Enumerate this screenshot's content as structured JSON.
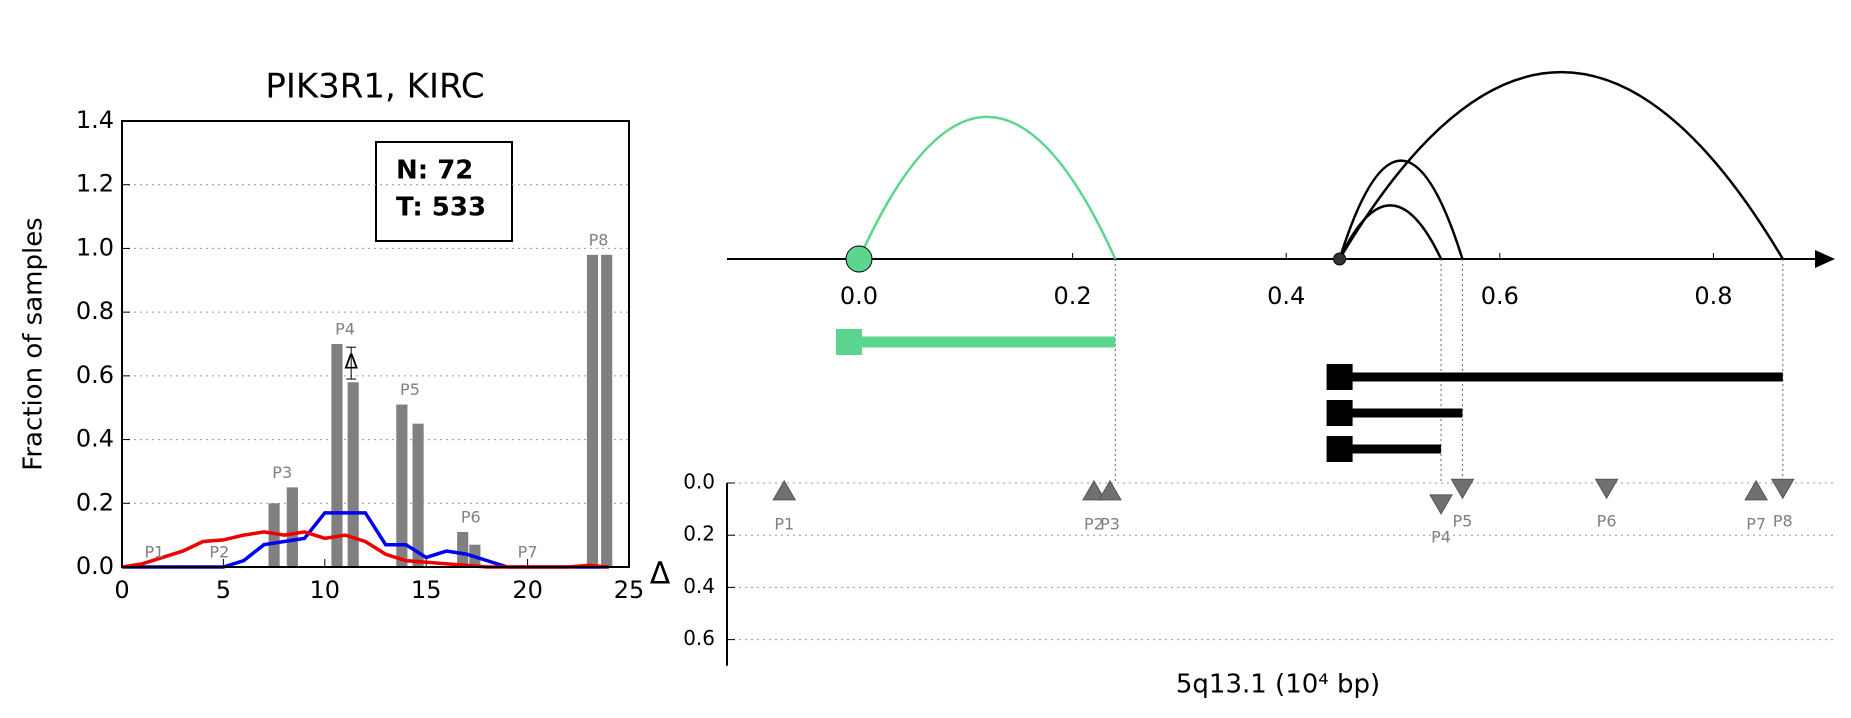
{
  "chart_data": [
    {
      "type": "bar",
      "title": "PIK3R1, KIRC",
      "ylabel": "Fraction of samples",
      "xlim": [
        0,
        25
      ],
      "xticks": [
        0,
        5,
        10,
        15,
        20,
        25
      ],
      "ylim": [
        0,
        1.4
      ],
      "yticks": [
        {
          "value": 0,
          "label": "0.0"
        },
        0.2,
        0.4,
        0.6,
        0.8,
        {
          "value": 1,
          "label": "1.0"
        },
        1.2,
        1.4
      ],
      "grid": true,
      "legend": [
        "N: 72",
        "T: 533"
      ],
      "legend_position": "upper right",
      "bar_color": "#808080",
      "bars": {
        "x": [
          7.5,
          8.4,
          10.6,
          11.4,
          13.8,
          14.6,
          16.8,
          17.4,
          23.2,
          23.9
        ],
        "values": [
          0.2,
          0.25,
          0.7,
          0.58,
          0.51,
          0.45,
          0.11,
          0.07,
          0.98,
          0.98
        ]
      },
      "series": [
        {
          "color": "#0000ee",
          "x": [
            0,
            1,
            2,
            3,
            4,
            5,
            6,
            7,
            8,
            9,
            10,
            11,
            12,
            13,
            14,
            15,
            16,
            17,
            18,
            19,
            20,
            21,
            22,
            23,
            24
          ],
          "values": [
            0,
            0,
            0,
            0,
            0,
            0,
            0.02,
            0.07,
            0.08,
            0.09,
            0.17,
            0.17,
            0.17,
            0.07,
            0.07,
            0.03,
            0.05,
            0.04,
            0.02,
            0,
            0,
            0,
            0,
            0,
            0
          ]
        },
        {
          "color": "#ee0000",
          "x": [
            0,
            1,
            2,
            3,
            4,
            5,
            6,
            7,
            8,
            9,
            10,
            11,
            12,
            13,
            14,
            15,
            16,
            17,
            18,
            19,
            20,
            21,
            22,
            23,
            24
          ],
          "values": [
            0,
            0.01,
            0.03,
            0.05,
            0.08,
            0.085,
            0.1,
            0.11,
            0.1,
            0.11,
            0.09,
            0.1,
            0.08,
            0.04,
            0.02,
            0.015,
            0.01,
            0.005,
            0,
            0,
            0,
            0,
            0,
            0.005,
            0
          ]
        }
      ],
      "peak_labels": [
        "P1",
        "P2",
        "P3",
        "P4",
        "P5",
        "P6",
        "P7",
        "P8"
      ],
      "peak_x": [
        1.6,
        4.8,
        7.9,
        11,
        14.2,
        17.2,
        20,
        23.5
      ],
      "annotation": "Δ"
    },
    {
      "type": "arc",
      "xlim": [
        -0.12,
        0.93
      ],
      "xticks": [
        {
          "value": 0,
          "label": "0.0"
        },
        0.2,
        0.4,
        0.6,
        0.8
      ],
      "arcs": [
        {
          "color": "#5cd68f",
          "start": 0,
          "end": 0.24
        },
        {
          "color": "#000000",
          "start": 0.45,
          "end": 0.545
        },
        {
          "color": "#000000",
          "start": 0.45,
          "end": 0.565
        },
        {
          "color": "#000000",
          "start": 0.45,
          "end": 0.865
        }
      ]
    },
    {
      "type": "scatter",
      "ylabel": "Δ",
      "xlabel": "5q13.1 (10⁴ bp)",
      "ylim": [
        0,
        0.7
      ],
      "yticks": [
        {
          "value": 0,
          "label": "0.0"
        },
        0.2,
        0.4,
        0.6
      ],
      "grid": true,
      "color": "#707070",
      "x": [
        -0.07,
        0.22,
        0.235,
        0.545,
        0.565,
        0.7,
        0.84,
        0.865
      ],
      "values": [
        0.03,
        0.03,
        0.03,
        0.08,
        0.02,
        0.02,
        0.03,
        0.02
      ],
      "markers": [
        "up",
        "up",
        "up",
        "down",
        "down",
        "down",
        "up",
        "down"
      ],
      "labels": [
        "P1",
        "P2",
        "P3",
        "P4",
        "P5",
        "P6",
        "P7",
        "P8"
      ]
    }
  ]
}
